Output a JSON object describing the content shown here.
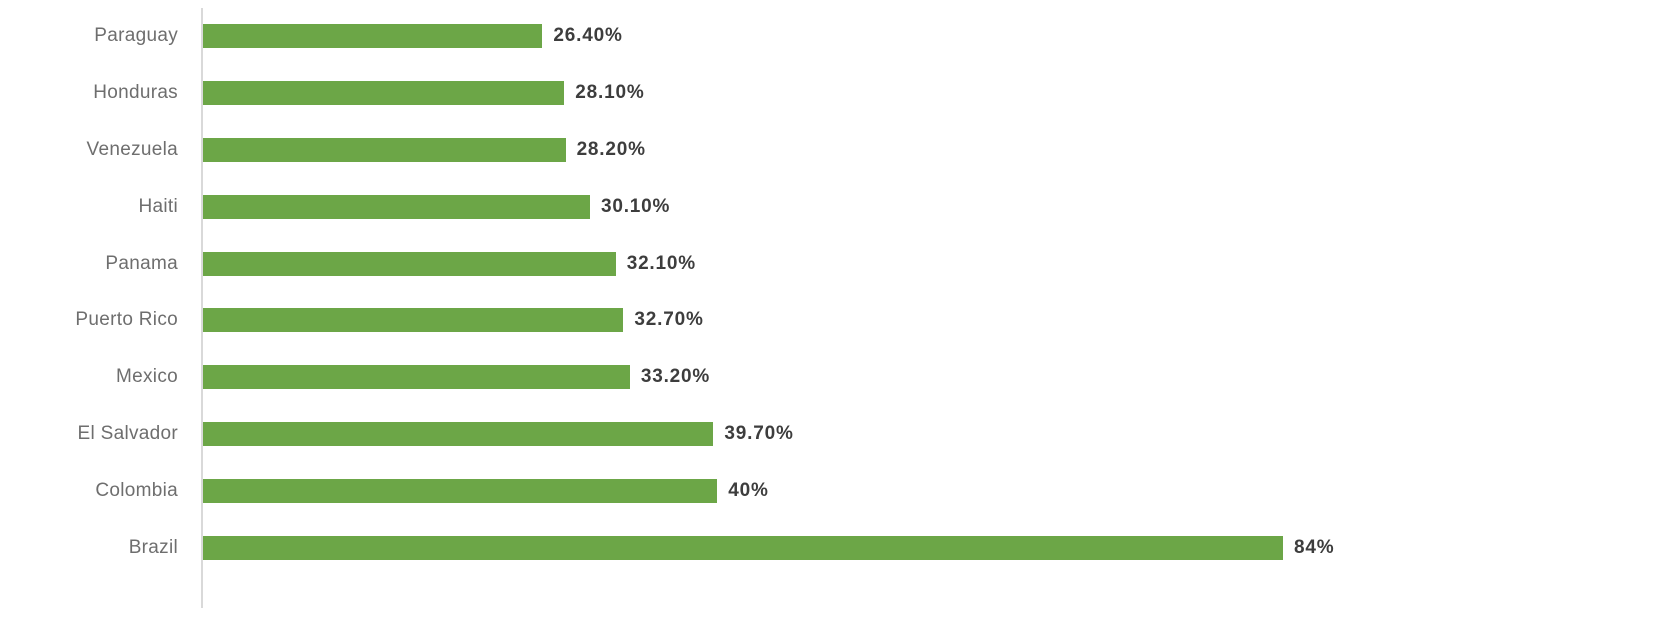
{
  "chart_data": {
    "type": "bar",
    "orientation": "horizontal",
    "categories": [
      "Paraguay",
      "Honduras",
      "Venezuela",
      "Haiti",
      "Panama",
      "Puerto Rico",
      "Mexico",
      "El Salvador",
      "Colombia",
      "Brazil"
    ],
    "values": [
      26.4,
      28.1,
      28.2,
      30.1,
      32.1,
      32.7,
      33.2,
      39.7,
      40,
      84
    ],
    "value_labels": [
      "26.40%",
      "28.10%",
      "28.20%",
      "30.10%",
      "32.10%",
      "32.70%",
      "33.20%",
      "39.70%",
      "40%",
      "84%"
    ],
    "xlim": [
      0,
      100
    ],
    "grid": false,
    "legend": false,
    "x_axis_ticks": "none",
    "data_labels_position": "end-of-bar",
    "sort_order": "ascending-top-to-bottom"
  },
  "colors": {
    "bar": "#6CA647",
    "axis_line": "#D9D9D9",
    "category_label": "#6E6E6E",
    "value_label": "#3D3D3D",
    "background": "#FFFFFF"
  }
}
